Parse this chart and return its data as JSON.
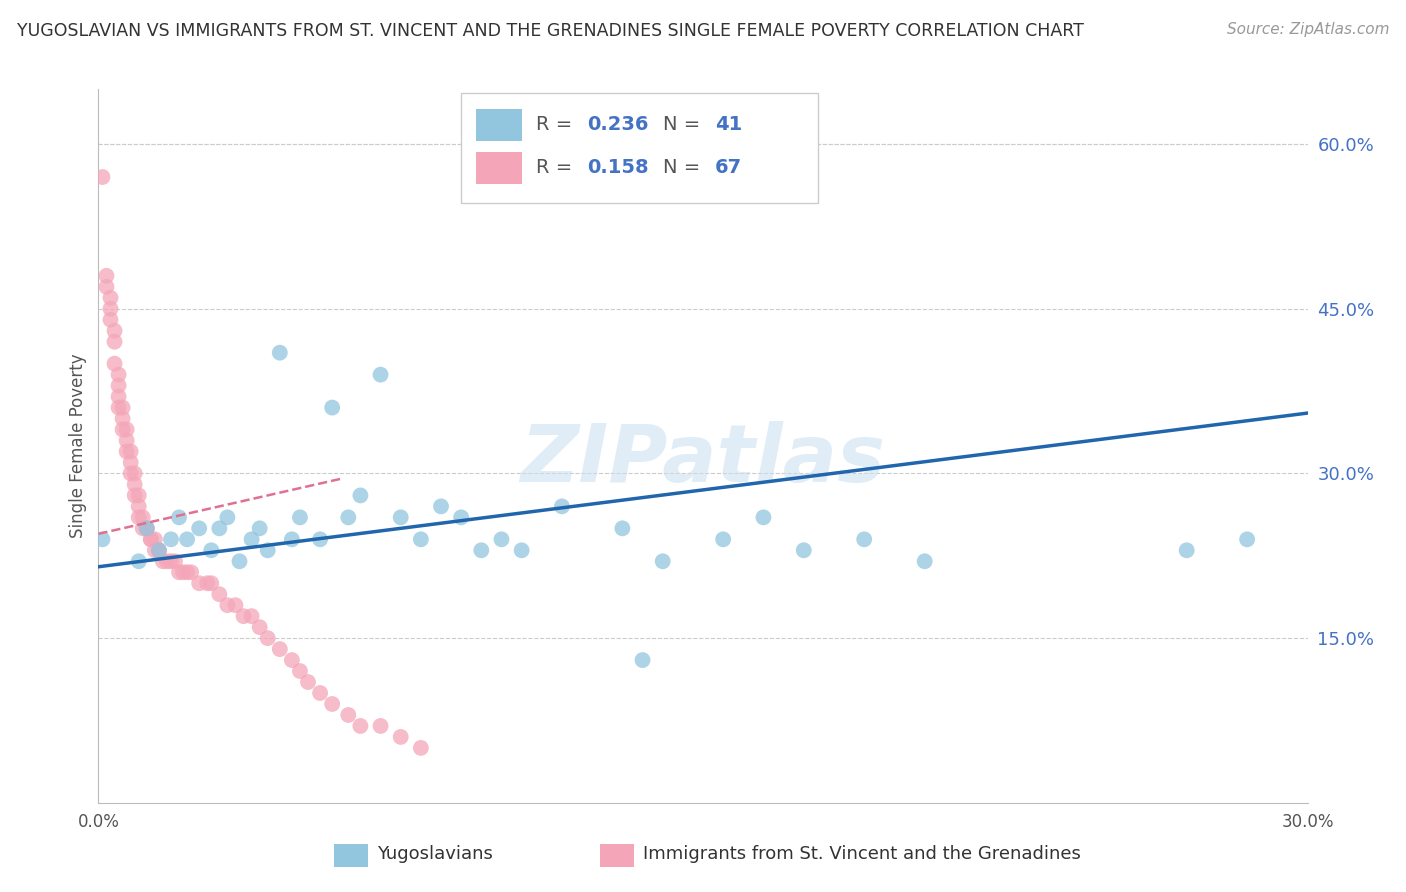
{
  "title": "YUGOSLAVIAN VS IMMIGRANTS FROM ST. VINCENT AND THE GRENADINES SINGLE FEMALE POVERTY CORRELATION CHART",
  "source": "Source: ZipAtlas.com",
  "ylabel": "Single Female Poverty",
  "y_tick_vals": [
    0.15,
    0.3,
    0.45,
    0.6
  ],
  "xlim": [
    0.0,
    0.3
  ],
  "ylim": [
    0.0,
    0.65
  ],
  "legend_r1": "0.236",
  "legend_n1": "41",
  "legend_r2": "0.158",
  "legend_n2": "67",
  "blue_color": "#92c5de",
  "pink_color": "#f4a6b8",
  "blue_line_color": "#2166ac",
  "pink_line_color": "#e07090",
  "watermark": "ZIPatlas",
  "blue_scatter_x": [
    0.001,
    0.01,
    0.012,
    0.015,
    0.018,
    0.02,
    0.022,
    0.025,
    0.028,
    0.03,
    0.032,
    0.035,
    0.038,
    0.04,
    0.042,
    0.045,
    0.048,
    0.05,
    0.055,
    0.058,
    0.062,
    0.065,
    0.07,
    0.075,
    0.08,
    0.085,
    0.09,
    0.095,
    0.1,
    0.105,
    0.115,
    0.13,
    0.135,
    0.14,
    0.155,
    0.165,
    0.175,
    0.19,
    0.205,
    0.27,
    0.285
  ],
  "blue_scatter_y": [
    0.24,
    0.22,
    0.25,
    0.23,
    0.24,
    0.26,
    0.24,
    0.25,
    0.23,
    0.25,
    0.26,
    0.22,
    0.24,
    0.25,
    0.23,
    0.41,
    0.24,
    0.26,
    0.24,
    0.36,
    0.26,
    0.28,
    0.39,
    0.26,
    0.24,
    0.27,
    0.26,
    0.23,
    0.24,
    0.23,
    0.27,
    0.25,
    0.13,
    0.22,
    0.24,
    0.26,
    0.23,
    0.24,
    0.22,
    0.23,
    0.24
  ],
  "pink_scatter_x": [
    0.001,
    0.002,
    0.002,
    0.003,
    0.003,
    0.003,
    0.004,
    0.004,
    0.004,
    0.005,
    0.005,
    0.005,
    0.005,
    0.006,
    0.006,
    0.006,
    0.007,
    0.007,
    0.007,
    0.008,
    0.008,
    0.008,
    0.009,
    0.009,
    0.009,
    0.01,
    0.01,
    0.01,
    0.011,
    0.011,
    0.012,
    0.012,
    0.013,
    0.013,
    0.014,
    0.014,
    0.015,
    0.015,
    0.016,
    0.017,
    0.018,
    0.019,
    0.02,
    0.021,
    0.022,
    0.023,
    0.025,
    0.027,
    0.028,
    0.03,
    0.032,
    0.034,
    0.036,
    0.038,
    0.04,
    0.042,
    0.045,
    0.048,
    0.05,
    0.052,
    0.055,
    0.058,
    0.062,
    0.065,
    0.07,
    0.075,
    0.08
  ],
  "pink_scatter_y": [
    0.57,
    0.48,
    0.47,
    0.46,
    0.45,
    0.44,
    0.43,
    0.42,
    0.4,
    0.39,
    0.38,
    0.37,
    0.36,
    0.36,
    0.35,
    0.34,
    0.34,
    0.33,
    0.32,
    0.32,
    0.31,
    0.3,
    0.3,
    0.29,
    0.28,
    0.28,
    0.27,
    0.26,
    0.26,
    0.25,
    0.25,
    0.25,
    0.24,
    0.24,
    0.24,
    0.23,
    0.23,
    0.23,
    0.22,
    0.22,
    0.22,
    0.22,
    0.21,
    0.21,
    0.21,
    0.21,
    0.2,
    0.2,
    0.2,
    0.19,
    0.18,
    0.18,
    0.17,
    0.17,
    0.16,
    0.15,
    0.14,
    0.13,
    0.12,
    0.11,
    0.1,
    0.09,
    0.08,
    0.07,
    0.07,
    0.06,
    0.05
  ],
  "blue_line_x0": 0.0,
  "blue_line_x1": 0.3,
  "blue_line_y0": 0.215,
  "blue_line_y1": 0.355,
  "pink_line_x0": 0.0,
  "pink_line_x1": 0.06,
  "pink_line_y0": 0.245,
  "pink_line_y1": 0.295
}
